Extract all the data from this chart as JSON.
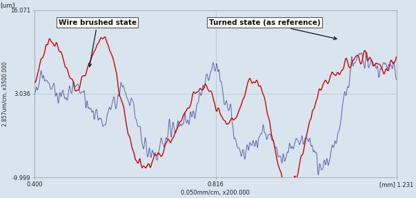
{
  "xlabel": "0.050mm/cm, x200.000",
  "ylabel": "2.857um/cm, x3500.000",
  "xlim": [
    0.4,
    1.231
  ],
  "ylim": [
    -9.999,
    16.071
  ],
  "x_ticks": [
    0.4,
    0.816,
    1.231
  ],
  "x_tick_labels": [
    "0.400",
    "0.816",
    "[mm] 1.231"
  ],
  "y_ticks": [
    -9.999,
    3.036,
    16.071
  ],
  "y_tick_labels": [
    "-9.999",
    "3.036",
    "16.071"
  ],
  "y_unit_label": "[um]",
  "background_color": "#d8e5ef",
  "grid_color": "#c0d0dc",
  "line_red_color": "#cc0000",
  "line_gray_color": "#6666aa",
  "annotation1": "Wire brushed state",
  "annotation2": "Turned state (as reference)",
  "figsize": [
    6.03,
    2.87
  ],
  "dpi": 100
}
